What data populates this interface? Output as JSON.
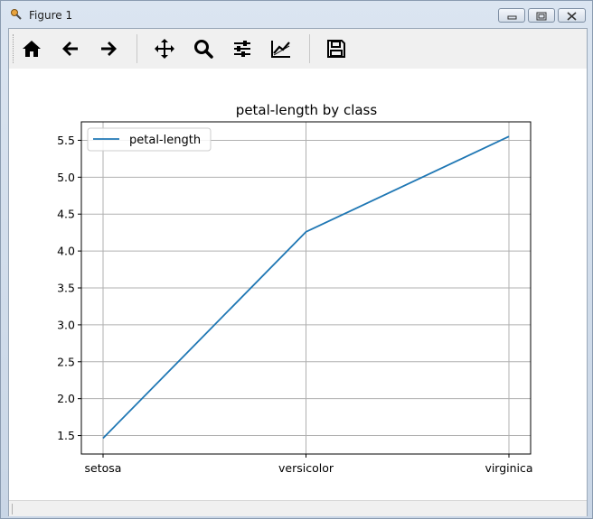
{
  "window": {
    "title": "Figure 1"
  },
  "toolbar": {
    "buttons": [
      {
        "name": "home",
        "icon": "home-icon"
      },
      {
        "name": "back",
        "icon": "arrow-left-icon"
      },
      {
        "name": "forward",
        "icon": "arrow-right-icon"
      },
      {
        "name": "pan",
        "icon": "move-icon"
      },
      {
        "name": "zoom",
        "icon": "magnifier-icon"
      },
      {
        "name": "configure-subplots",
        "icon": "sliders-icon"
      },
      {
        "name": "edit-axis",
        "icon": "line-chart-icon"
      },
      {
        "name": "save",
        "icon": "floppy-disk-icon"
      }
    ]
  },
  "chart_data": {
    "type": "line",
    "title": "petal-length by class",
    "xlabel": "",
    "ylabel": "",
    "categories": [
      "setosa",
      "versicolor",
      "virginica"
    ],
    "series": [
      {
        "name": "petal-length",
        "values": [
          1.464,
          4.26,
          5.552
        ],
        "color": "#1f77b4"
      }
    ],
    "ylim": [
      1.25,
      5.75
    ],
    "yticks": [
      "1.5",
      "2.0",
      "2.5",
      "3.0",
      "3.5",
      "4.0",
      "4.5",
      "5.0",
      "5.5"
    ],
    "grid": true,
    "legend": "upper-left"
  }
}
